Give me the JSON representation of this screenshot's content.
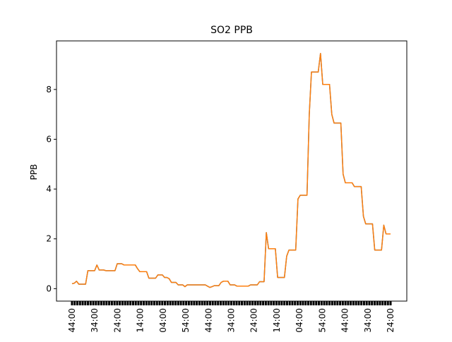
{
  "chart_data": {
    "type": "line",
    "title": "SO2 PPB",
    "xlabel": "",
    "ylabel": "PPB",
    "grid": false,
    "ylim": [
      -0.5,
      9.95
    ],
    "yticks": [
      0,
      2,
      4,
      6,
      8
    ],
    "x_tick_labels": [
      "44:00",
      "34:00",
      "24:00",
      "14:00",
      "04:00",
      "54:00",
      "44:00",
      "34:00",
      "24:00",
      "14:00",
      "04:00",
      "54:00",
      "44:00",
      "34:00",
      "24:00"
    ],
    "colors": {
      "series_a": "#1f77b4",
      "series_b": "#ff7f0e"
    },
    "series": [
      {
        "values": [
          0.2,
          0.22,
          0.3,
          0.18,
          0.18,
          0.18,
          0.18,
          0.72,
          0.72,
          0.72,
          0.72,
          0.95,
          0.75,
          0.75,
          0.75,
          0.72,
          0.72,
          0.72,
          0.72,
          0.72,
          1.0,
          1.0,
          1.0,
          0.95,
          0.95,
          0.95,
          0.95,
          0.95,
          0.95,
          0.8,
          0.68,
          0.68,
          0.68,
          0.68,
          0.42,
          0.42,
          0.42,
          0.42,
          0.55,
          0.55,
          0.55,
          0.45,
          0.45,
          0.4,
          0.25,
          0.25,
          0.25,
          0.15,
          0.15,
          0.15,
          0.08,
          0.15,
          0.15,
          0.15,
          0.15,
          0.15,
          0.15,
          0.15,
          0.15,
          0.15,
          0.1,
          0.05,
          0.08,
          0.12,
          0.12,
          0.12,
          0.25,
          0.3,
          0.3,
          0.3,
          0.15,
          0.15,
          0.15,
          0.1,
          0.1,
          0.1,
          0.1,
          0.1,
          0.1,
          0.15,
          0.15,
          0.15,
          0.15,
          0.28,
          0.28,
          0.28,
          2.25,
          1.6,
          1.6,
          1.6,
          1.6,
          0.45,
          0.45,
          0.45,
          0.45,
          1.3,
          1.55,
          1.55,
          1.55,
          1.55,
          3.6,
          3.75,
          3.75,
          3.75,
          3.75,
          7.0,
          8.7,
          8.7,
          8.7,
          8.7,
          9.45,
          8.2,
          8.2,
          8.2,
          8.2,
          7.0,
          6.65,
          6.65,
          6.65,
          6.65,
          4.6,
          4.25,
          4.25,
          4.25,
          4.25,
          4.1,
          4.1,
          4.1,
          4.1,
          2.9,
          2.6,
          2.6,
          2.6,
          2.6,
          1.55,
          1.55,
          1.55,
          1.55,
          2.55,
          2.2,
          2.2,
          2.2
        ]
      }
    ]
  }
}
